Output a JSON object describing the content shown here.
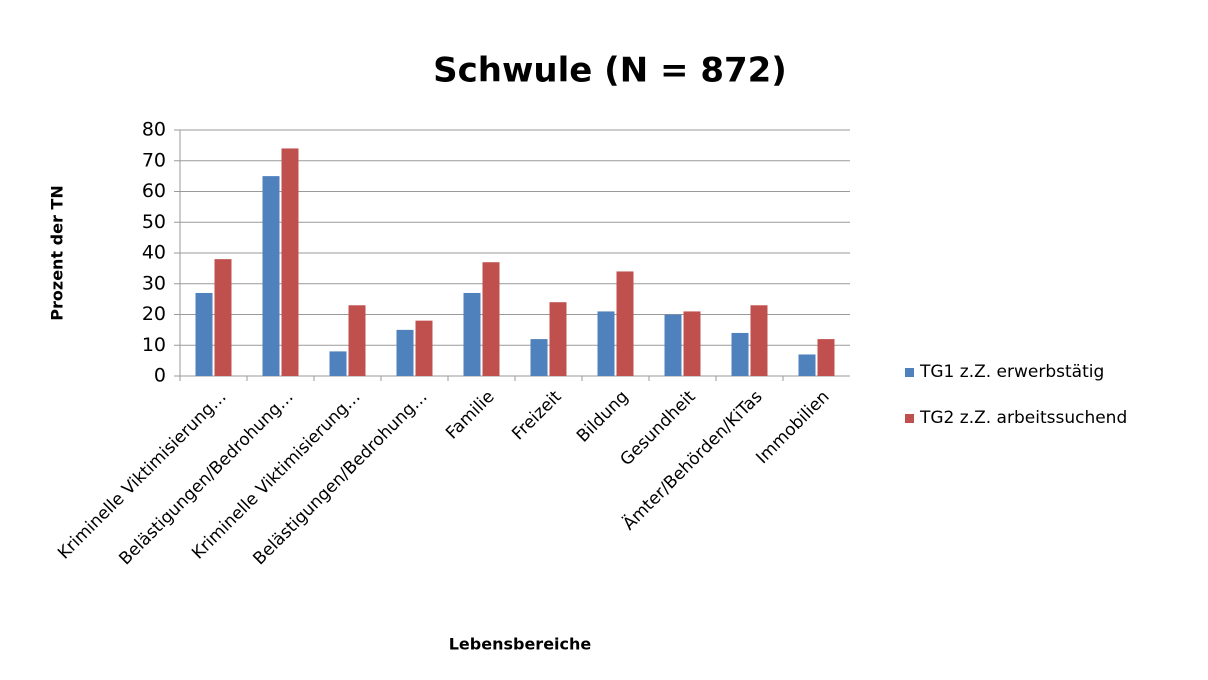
{
  "chart_data": {
    "type": "bar",
    "title": "Schwule (N = 872)",
    "x_label": "Lebensbereiche",
    "y_label": "Prozent der TN",
    "categories": [
      "Kriminelle Viktimisierung…",
      "Belästigungen/Bedrohung…",
      "Kriminelle Viktimisierung…",
      "Belästigungen/Bedrohung…",
      "Familie",
      "Freizeit",
      "Bildung",
      "Gesundheit",
      "Ämter/Behörden/KiTas",
      "Immobilien"
    ],
    "series": [
      {
        "name": "TG1 z.Z. erwerbstätig",
        "color": "#4f81bd",
        "values": [
          27,
          65,
          8,
          15,
          27,
          12,
          21,
          20,
          14,
          7
        ]
      },
      {
        "name": "TG2 z.Z. arbeitssuchend",
        "color": "#c0504d",
        "values": [
          38,
          74,
          23,
          18,
          37,
          24,
          34,
          21,
          23,
          12
        ]
      }
    ],
    "ylim": [
      0,
      80
    ],
    "yticks": [
      0,
      10,
      20,
      30,
      40,
      50,
      60,
      70,
      80
    ],
    "grid": true,
    "legend": "right"
  }
}
